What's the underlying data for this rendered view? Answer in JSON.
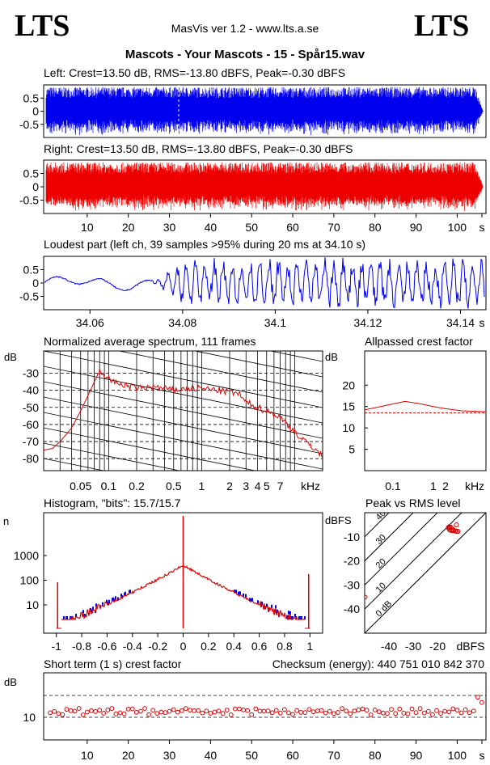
{
  "header": {
    "logo_left": "LTS",
    "logo_right": "LTS",
    "app_line": "MasVis ver 1.2 - www.lts.a.se",
    "track_title": "Mascots - Your Mascots - 15 - Spår15.wav"
  },
  "colors": {
    "left": "#0000ee",
    "right": "#ee0000",
    "trace": "#dd0000"
  },
  "chart_data": [
    {
      "id": "left_wave",
      "type": "line",
      "title": "Left: Crest=13.50 dB, RMS=-13.80 dBFS, Peak=-0.30 dBFS",
      "yticks": [
        "0.5",
        "0",
        "-0.5"
      ],
      "ylim": [
        -1,
        1
      ],
      "xlim": [
        0,
        107
      ],
      "series": [
        {
          "values": "waveform"
        }
      ]
    },
    {
      "id": "right_wave",
      "type": "line",
      "title": "Right: Crest=13.50 dB, RMS=-13.80 dBFS, Peak=-0.30 dBFS",
      "yticks": [
        "0.5",
        "0",
        "-0.5"
      ],
      "ylim": [
        -1,
        1
      ],
      "xlim": [
        0,
        107
      ],
      "xticks": [
        "10",
        "20",
        "30",
        "40",
        "50",
        "60",
        "70",
        "80",
        "90",
        "100",
        "s"
      ]
    },
    {
      "id": "loudest",
      "type": "line",
      "title": "Loudest part (left  ch, 39 samples >95% during 20 ms at 34.10 s)",
      "yticks": [
        "0.5",
        "0",
        "-0.5"
      ],
      "ylim": [
        -1,
        1
      ],
      "xlim": [
        34.05,
        34.1455
      ],
      "xticks": [
        "34.06",
        "34.08",
        "34.1",
        "34.12",
        "34.14",
        "s"
      ]
    },
    {
      "id": "spectrum",
      "type": "line",
      "title": "Normalized average spectrum, 111 frames",
      "ylabel": "dB",
      "yticks": [
        "-30",
        "-40",
        "-50",
        "-60",
        "-70",
        "-80"
      ],
      "ylim": [
        -87,
        -17
      ],
      "xticks": [
        "0.05",
        "0.1",
        "0.2",
        "0.5",
        "1",
        "2",
        "3",
        "4",
        "5",
        "7",
        "kHz"
      ],
      "xlim": [
        0.02,
        20
      ],
      "series": [
        {
          "x": [
            0.02,
            0.025,
            0.03,
            0.04,
            0.05,
            0.06,
            0.07,
            0.08,
            0.1,
            0.12,
            0.15,
            0.2,
            0.3,
            0.5,
            0.7,
            1,
            1.5,
            2,
            2.5,
            3,
            4,
            5,
            6,
            7,
            8,
            10,
            12,
            15,
            20
          ],
          "y": [
            -75,
            -74,
            -70,
            -62,
            -52,
            -43,
            -35,
            -29,
            -33,
            -36,
            -37,
            -39,
            -38,
            -40,
            -39,
            -39,
            -40,
            -41,
            -42,
            -47,
            -50,
            -52,
            -54,
            -56,
            -59,
            -64,
            -69,
            -72,
            -79
          ]
        }
      ]
    },
    {
      "id": "allpass",
      "type": "line",
      "title": "Allpassed crest factor",
      "ylabel": "dB",
      "yticks": [
        "20",
        "15",
        "10",
        "5"
      ],
      "ylim": [
        0,
        28
      ],
      "xticks": [
        "0.1",
        "1",
        "2",
        "kHz"
      ],
      "xlim": [
        0.02,
        20
      ],
      "series": [
        {
          "x": [
            0.02,
            0.05,
            0.1,
            0.2,
            0.5,
            1,
            2,
            5,
            10,
            20
          ],
          "y": [
            14.2,
            15,
            15.6,
            16.2,
            15.6,
            15,
            14.5,
            14,
            13.9,
            13.8
          ]
        }
      ],
      "reference_line": 13.5
    },
    {
      "id": "histogram",
      "type": "line",
      "title": "Histogram, \"bits\": 15.7/15.7",
      "ylabel": "n",
      "yticks": [
        "1000",
        "100",
        "10"
      ],
      "xticks": [
        "-1",
        "-0.8",
        "-0.6",
        "-0.4",
        "-0.2",
        "0",
        "0.2",
        "0.4",
        "0.6",
        "0.8",
        "1"
      ],
      "xlim": [
        -1.1,
        1.1
      ]
    },
    {
      "id": "peak_rms",
      "type": "scatter",
      "title": "Peak vs RMS level",
      "yunit": "dBFS",
      "xunit": "dBFS",
      "yticks": [
        "-10",
        "-20",
        "-30",
        "-40"
      ],
      "xticks": [
        "-40",
        "-30",
        "-20"
      ],
      "xlim": [
        -50,
        0
      ],
      "ylim": [
        -50,
        0
      ],
      "diagonals": [
        "0 dB",
        "10",
        "20",
        "30",
        "40"
      ]
    },
    {
      "id": "short_crest",
      "type": "scatter",
      "title": "Short term (1 s) crest factor",
      "ylabel": "dB",
      "yticks": [
        "10"
      ],
      "xticks": [
        "10",
        "20",
        "30",
        "40",
        "50",
        "60",
        "70",
        "80",
        "90",
        "100",
        "s"
      ],
      "xlim": [
        0,
        107
      ],
      "ylim": [
        5,
        20
      ]
    }
  ],
  "checksum": "Checksum (energy):   440 751 010 842 370"
}
